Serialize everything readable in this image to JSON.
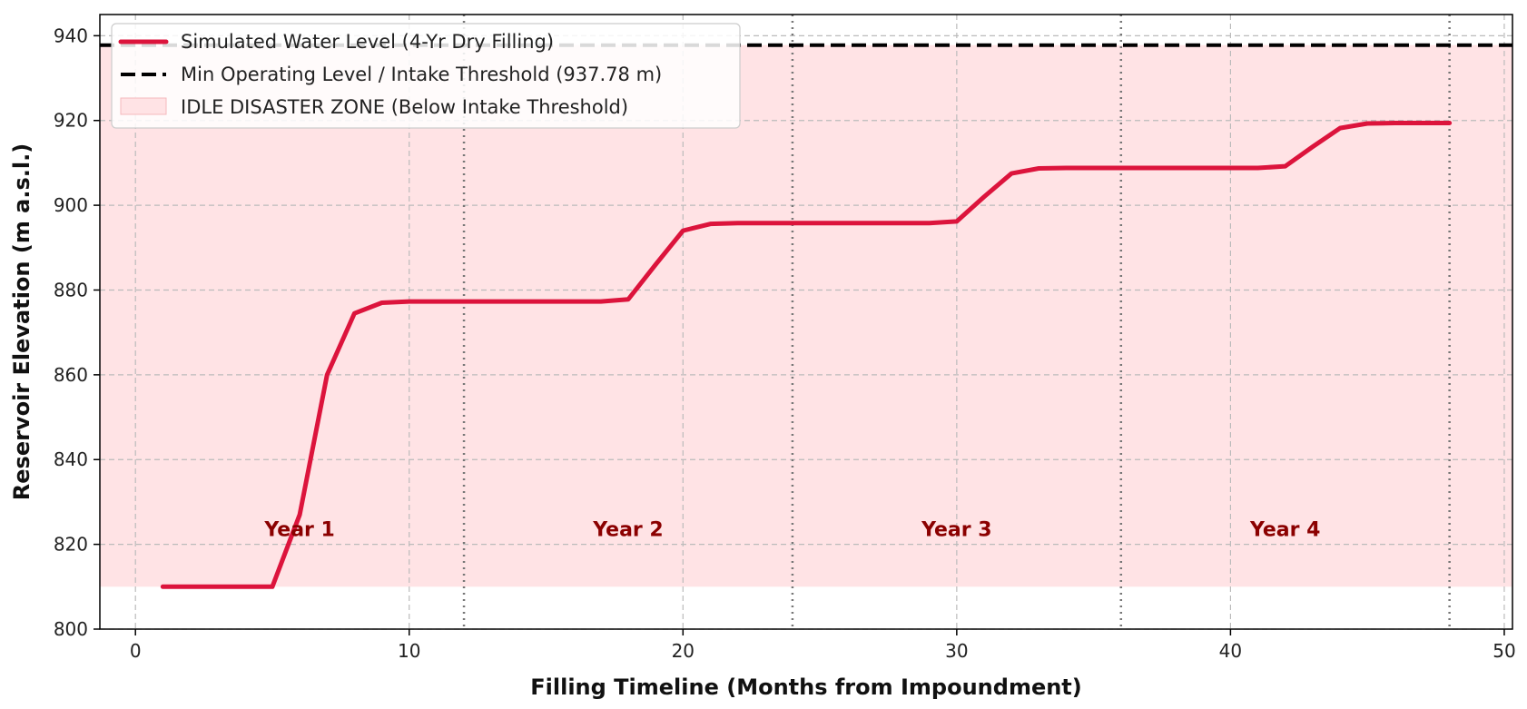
{
  "chart_data": {
    "type": "line",
    "xlabel": "Filling Timeline (Months from Impoundment)",
    "ylabel": "Reservoir Elevation (m a.s.l.)",
    "xlim": [
      -1.3,
      50.3
    ],
    "ylim": [
      800,
      945
    ],
    "x_ticks": [
      0,
      10,
      20,
      30,
      40,
      50
    ],
    "y_ticks": [
      800,
      820,
      840,
      860,
      880,
      900,
      920,
      940
    ],
    "grid": true,
    "legend_position": "top-left",
    "series": [
      {
        "name": "Simulated Water Level (4-Yr Dry Filling)",
        "color": "#dc143c",
        "x": [
          1,
          2,
          3,
          4,
          5,
          6,
          7,
          8,
          9,
          10,
          11,
          12,
          13,
          14,
          15,
          16,
          17,
          18,
          19,
          20,
          21,
          22,
          23,
          24,
          25,
          26,
          27,
          28,
          29,
          30,
          31,
          32,
          33,
          34,
          35,
          36,
          37,
          38,
          39,
          40,
          41,
          42,
          43,
          44,
          45,
          46,
          47,
          48
        ],
        "y": [
          810,
          810,
          810,
          810,
          810,
          827,
          860,
          874.5,
          877,
          877.3,
          877.3,
          877.3,
          877.3,
          877.3,
          877.3,
          877.3,
          877.3,
          877.8,
          886,
          894,
          895.6,
          895.8,
          895.8,
          895.8,
          895.8,
          895.8,
          895.8,
          895.8,
          895.8,
          896.2,
          902,
          907.5,
          908.7,
          908.8,
          908.8,
          908.8,
          908.8,
          908.8,
          908.8,
          908.8,
          908.8,
          909.2,
          913.8,
          918.2,
          919.3,
          919.4,
          919.4,
          919.4
        ]
      }
    ],
    "threshold": {
      "label": "Min Operating Level / Intake Threshold (937.78 m)",
      "value": 937.78,
      "color": "#000000"
    },
    "zone": {
      "label": "IDLE DISASTER ZONE (Below Intake Threshold)",
      "y_range": [
        810,
        937.78
      ],
      "color": "#ffe3e5"
    },
    "year_boundaries": [
      12,
      24,
      36,
      48
    ],
    "year_labels": [
      {
        "text": "Year 1",
        "x": 6,
        "y": 822
      },
      {
        "text": "Year 2",
        "x": 18,
        "y": 822
      },
      {
        "text": "Year 3",
        "x": 30,
        "y": 822
      },
      {
        "text": "Year 4",
        "x": 42,
        "y": 822
      }
    ],
    "year_label_color": "#8b0000"
  }
}
